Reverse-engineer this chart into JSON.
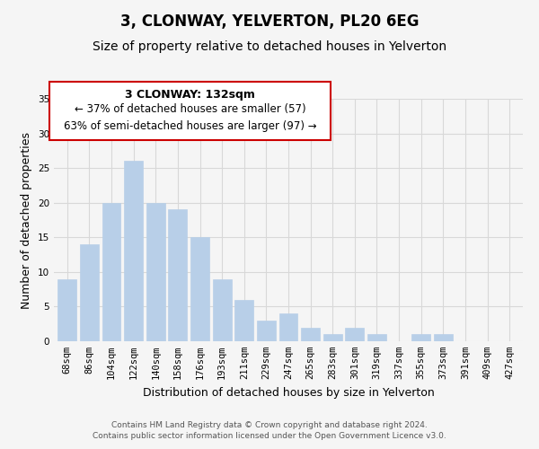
{
  "title": "3, CLONWAY, YELVERTON, PL20 6EG",
  "subtitle": "Size of property relative to detached houses in Yelverton",
  "xlabel": "Distribution of detached houses by size in Yelverton",
  "ylabel": "Number of detached properties",
  "categories": [
    "68sqm",
    "86sqm",
    "104sqm",
    "122sqm",
    "140sqm",
    "158sqm",
    "176sqm",
    "193sqm",
    "211sqm",
    "229sqm",
    "247sqm",
    "265sqm",
    "283sqm",
    "301sqm",
    "319sqm",
    "337sqm",
    "355sqm",
    "373sqm",
    "391sqm",
    "409sqm",
    "427sqm"
  ],
  "values": [
    9,
    14,
    20,
    26,
    20,
    19,
    15,
    9,
    6,
    3,
    4,
    2,
    1,
    2,
    1,
    0,
    1,
    1,
    0,
    0,
    0
  ],
  "bar_color": "#b8cfe8",
  "bar_edge_color": "#b8cfe8",
  "annotation_box_title": "3 CLONWAY: 132sqm",
  "annotation_line1": "← 37% of detached houses are smaller (57)",
  "annotation_line2": "63% of semi-detached houses are larger (97) →",
  "annotation_box_edge_color": "#cc0000",
  "ylim": [
    0,
    35
  ],
  "yticks": [
    0,
    5,
    10,
    15,
    20,
    25,
    30,
    35
  ],
  "footnote1": "Contains HM Land Registry data © Crown copyright and database right 2024.",
  "footnote2": "Contains public sector information licensed under the Open Government Licence v3.0.",
  "bg_color": "#f5f5f5",
  "grid_color": "#d8d8d8",
  "title_fontsize": 12,
  "subtitle_fontsize": 10,
  "axis_label_fontsize": 9,
  "tick_fontsize": 7.5,
  "annotation_title_fontsize": 9,
  "annotation_fontsize": 8.5,
  "footnote_fontsize": 6.5
}
